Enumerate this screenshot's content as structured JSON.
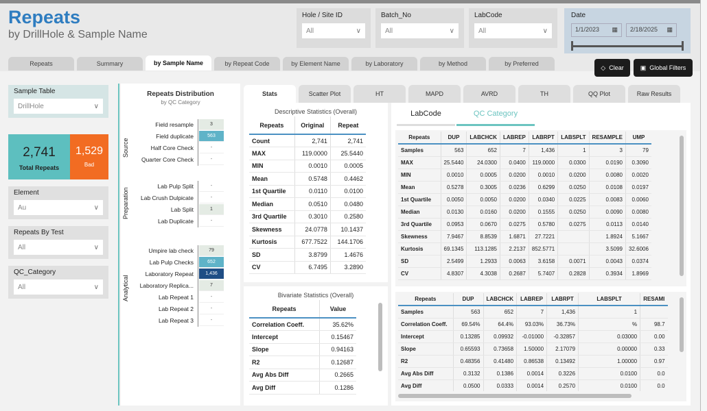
{
  "header": {
    "title": "Repeats",
    "subtitle": "by DrillHole & Sample Name"
  },
  "filters": [
    {
      "label": "Hole / Site ID",
      "value": "All"
    },
    {
      "label": "Batch_No",
      "value": "All"
    },
    {
      "label": "LabCode",
      "value": "All"
    }
  ],
  "date": {
    "label": "Date",
    "start": "1/1/2023",
    "end": "2/18/2025"
  },
  "page_tabs": [
    "Repeats",
    "Summary",
    "by Sample Name",
    "by Repeat Code",
    "by Element Name",
    "by Laboratory",
    "by Method",
    "by Preferred"
  ],
  "buttons": {
    "clear": "Clear",
    "global_filters": "Global Filters"
  },
  "left": {
    "sample_table": {
      "label": "Sample Table",
      "value": "DrillHole"
    },
    "kpi": {
      "total": "2,741",
      "total_label": "Total Repeats",
      "bad": "1,529",
      "bad_label": "Bad"
    },
    "element": {
      "label": "Element",
      "value": "Au"
    },
    "repeats_by_test": {
      "label": "Repeats By Test",
      "value": "All"
    },
    "qc_category": {
      "label": "QC_Category",
      "value": "All"
    }
  },
  "distribution": {
    "title": "Repeats Distribution",
    "subtitle": "by QC Category",
    "groups": [
      {
        "name": "Source",
        "rows": [
          [
            "Field resample",
            "3"
          ],
          [
            "Field duplicate",
            "563"
          ],
          [
            "Half Core Check",
            "-"
          ],
          [
            "Quarter Core Check",
            "-"
          ]
        ]
      },
      {
        "name": "Preparation",
        "rows": [
          [
            "Lab Pulp Split",
            "-"
          ],
          [
            "Lab Crush Dulpicate",
            "-"
          ],
          [
            "Lab Split",
            "1"
          ],
          [
            "Lab Duplicate",
            "-"
          ]
        ]
      },
      {
        "name": "Analytical",
        "rows": [
          [
            "Umpire lab check",
            "79"
          ],
          [
            "Lab Pulp Checks",
            "652"
          ],
          [
            "Laboratory Repeat",
            "1,436"
          ],
          [
            "Laboratory Replica...",
            "7"
          ],
          [
            "Lab Repeat 1",
            "-"
          ],
          [
            "Lab Repeat 2",
            "-"
          ],
          [
            "Lab Repeat 3",
            "-"
          ]
        ]
      }
    ]
  },
  "stat_tabs": [
    "Stats",
    "Scatter Plot",
    "HT",
    "MAPD",
    "AVRD",
    "TH",
    "QQ Plot",
    "Raw Results"
  ],
  "descriptive": {
    "title": "Descriptive Statistics (Overall)",
    "columns": [
      "Repeats",
      "Original",
      "Repeat"
    ],
    "rows": [
      [
        "Count",
        "2,741",
        "2,741"
      ],
      [
        "MAX",
        "119.0000",
        "25.5440"
      ],
      [
        "MIN",
        "0.0010",
        "0.0005"
      ],
      [
        "Mean",
        "0.5748",
        "0.4462"
      ],
      [
        "1st Quartile",
        "0.0110",
        "0.0100"
      ],
      [
        "Median",
        "0.0510",
        "0.0480"
      ],
      [
        "3rd Quartile",
        "0.3010",
        "0.2580"
      ],
      [
        "Skewness",
        "24.0778",
        "10.1437"
      ],
      [
        "Kurtosis",
        "677.7522",
        "144.1706"
      ],
      [
        "SD",
        "3.8799",
        "1.4676"
      ],
      [
        "CV",
        "6.7495",
        "3.2890"
      ]
    ]
  },
  "bivariate": {
    "title": "Bivariate Statistics (Overall)",
    "columns": [
      "Repeats",
      "Value"
    ],
    "rows": [
      [
        "Correlation Coeff.",
        "35.62%"
      ],
      [
        "Intercept",
        "0.15467"
      ],
      [
        "Slope",
        "0.94163"
      ],
      [
        "R2",
        "0.12687"
      ],
      [
        "Avg Abs Diff",
        "0.2665"
      ],
      [
        "Avg Diff",
        "0.1286"
      ]
    ]
  },
  "group_tabs": [
    "LabCode",
    "QC Category"
  ],
  "by_code_desc": {
    "columns": [
      "Repeats",
      "DUP",
      "LABCHCK",
      "LABREP",
      "LABRPT",
      "LABSPLT",
      "RESAMPLE",
      "UMP"
    ],
    "rows": [
      [
        "Samples",
        "563",
        "652",
        "7",
        "1,436",
        "1",
        "3",
        "79"
      ],
      [
        "MAX",
        "25.5440",
        "24.0300",
        "0.0400",
        "119.0000",
        "0.0300",
        "0.0190",
        "0.3090"
      ],
      [
        "MIN",
        "0.0010",
        "0.0005",
        "0.0200",
        "0.0010",
        "0.0200",
        "0.0080",
        "0.0020"
      ],
      [
        "Mean",
        "0.5278",
        "0.3005",
        "0.0236",
        "0.6299",
        "0.0250",
        "0.0108",
        "0.0197"
      ],
      [
        "1st Quartile",
        "0.0050",
        "0.0050",
        "0.0200",
        "0.0340",
        "0.0225",
        "0.0083",
        "0.0060"
      ],
      [
        "Median",
        "0.0130",
        "0.0160",
        "0.0200",
        "0.1555",
        "0.0250",
        "0.0090",
        "0.0080"
      ],
      [
        "3rd Quartile",
        "0.0953",
        "0.0670",
        "0.0275",
        "0.5780",
        "0.0275",
        "0.0113",
        "0.0140"
      ],
      [
        "Skewness",
        "7.9467",
        "8.8539",
        "1.6871",
        "27.7221",
        "",
        "1.8924",
        "5.1667"
      ],
      [
        "Kurtosis",
        "69.1345",
        "113.1285",
        "2.2137",
        "852.5771",
        "",
        "3.5099",
        "32.6006"
      ],
      [
        "SD",
        "2.5499",
        "1.2933",
        "0.0063",
        "3.6158",
        "0.0071",
        "0.0043",
        "0.0374"
      ],
      [
        "CV",
        "4.8307",
        "4.3038",
        "0.2687",
        "5.7407",
        "0.2828",
        "0.3934",
        "1.8969"
      ]
    ]
  },
  "by_code_biv": {
    "columns": [
      "Repeats",
      "DUP",
      "LABCHCK",
      "LABREP",
      "LABRPT",
      "LABSPLT",
      "RESAMI"
    ],
    "rows": [
      [
        "Samples",
        "563",
        "652",
        "7",
        "1,436",
        "1",
        ""
      ],
      [
        "Correlation Coeff.",
        "69.54%",
        "64.4%",
        "93.03%",
        "36.73%",
        "%",
        "98.7"
      ],
      [
        "Intercept",
        "0.13285",
        "0.09932",
        "-0.01000",
        "-0.32857",
        "0.03000",
        "0.00"
      ],
      [
        "Slope",
        "0.65593",
        "0.73658",
        "1.50000",
        "2.17079",
        "0.00000",
        "0.33"
      ],
      [
        "R2",
        "0.48356",
        "0.41480",
        "0.86538",
        "0.13492",
        "1.00000",
        "0.97"
      ],
      [
        "Avg Abs Diff",
        "0.3132",
        "0.1386",
        "0.0014",
        "0.3226",
        "0.0100",
        "0.0"
      ],
      [
        "Avg Diff",
        "0.0500",
        "0.0333",
        "0.0014",
        "0.2570",
        "0.0100",
        "0.0"
      ]
    ]
  },
  "colors": {
    "accent": "#2f7dc0",
    "teal": "#5dbfbf",
    "orange": "#f26c22",
    "navy": "#1f4e85"
  }
}
